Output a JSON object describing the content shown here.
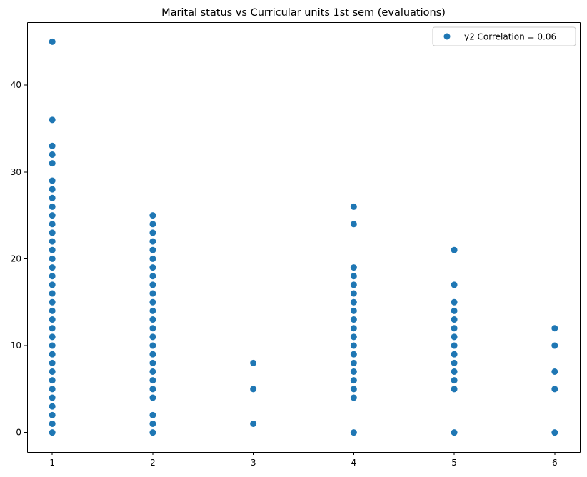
{
  "chart_data": {
    "type": "scatter",
    "title": "Marital status vs Curricular units 1st sem (evaluations)",
    "xlabel": "",
    "ylabel": "",
    "xlim": [
      0.75,
      6.25
    ],
    "ylim": [
      -2.25,
      47.25
    ],
    "x_ticks": [
      1,
      2,
      3,
      4,
      5,
      6
    ],
    "y_ticks": [
      0,
      10,
      20,
      30,
      40
    ],
    "grid": false,
    "legend_position": "top-right",
    "series": [
      {
        "name": "y2 Correlation = 0.06",
        "color": "#1f77b4",
        "points": [
          {
            "x": 1,
            "ys": [
              0,
              1,
              2,
              3,
              4,
              5,
              6,
              7,
              8,
              9,
              10,
              11,
              12,
              13,
              14,
              15,
              16,
              17,
              18,
              19,
              20,
              21,
              22,
              23,
              24,
              25,
              26,
              27,
              28,
              29,
              31,
              32,
              33,
              36,
              45
            ]
          },
          {
            "x": 2,
            "ys": [
              0,
              1,
              2,
              4,
              5,
              6,
              7,
              8,
              9,
              10,
              11,
              12,
              13,
              14,
              15,
              16,
              17,
              18,
              19,
              20,
              21,
              22,
              23,
              24,
              25
            ]
          },
          {
            "x": 3,
            "ys": [
              1,
              5,
              8
            ]
          },
          {
            "x": 4,
            "ys": [
              0,
              4,
              5,
              6,
              7,
              8,
              9,
              10,
              11,
              12,
              13,
              14,
              15,
              16,
              17,
              18,
              19,
              24,
              26
            ]
          },
          {
            "x": 5,
            "ys": [
              0,
              5,
              6,
              7,
              8,
              9,
              10,
              11,
              12,
              13,
              14,
              15,
              17,
              21
            ]
          },
          {
            "x": 6,
            "ys": [
              0,
              5,
              7,
              10,
              12
            ]
          }
        ]
      }
    ]
  }
}
